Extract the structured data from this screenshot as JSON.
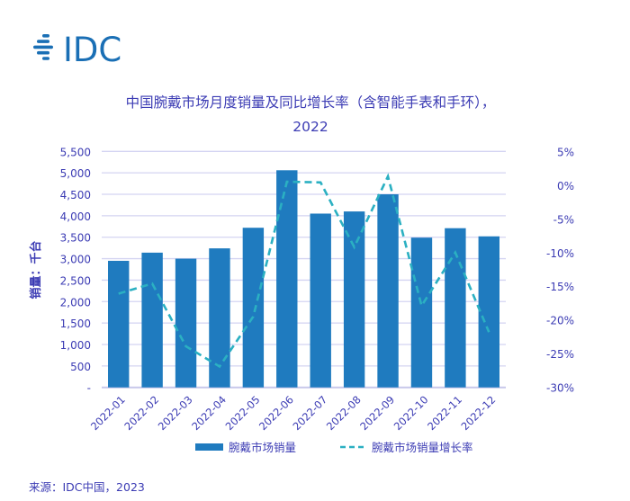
{
  "logo": {
    "text": "IDC",
    "color": "#1a6fb5"
  },
  "source": "来源：IDC中国，2023",
  "colors": {
    "text": "#3c3cb4",
    "bar": "#1f7bbf",
    "line": "#2bb0c2",
    "grid": "#d4d4f2"
  },
  "chart_data": {
    "type": "bar+line",
    "title_line1": "中国腕戴市场月度销量及同比增长率（含智能手表和手环），",
    "title_line2": "2022",
    "ylabel": "销量：千台",
    "categories": [
      "2022-01",
      "2022-02",
      "2022-03",
      "2022-04",
      "2022-05",
      "2022-06",
      "2022-07",
      "2022-08",
      "2022-09",
      "2022-10",
      "2022-11",
      "2022-12"
    ],
    "series": [
      {
        "name": "腕戴市场销量",
        "type": "bar",
        "axis": "left",
        "values": [
          2950,
          3140,
          3000,
          3240,
          3720,
          5060,
          4050,
          4100,
          4500,
          3490,
          3710,
          3520
        ]
      },
      {
        "name": "腕戴市场销量增长率",
        "type": "line",
        "style": "dashed",
        "axis": "right",
        "values": [
          -16.1,
          -14.6,
          -23.9,
          -26.9,
          -19.5,
          0.5,
          0.4,
          -9.2,
          1.3,
          -17.9,
          -10.0,
          -21.8
        ]
      }
    ],
    "left_axis": {
      "range": [
        0,
        5500
      ],
      "ticks": [
        "-",
        "500",
        "1,000",
        "1,500",
        "2,000",
        "2,500",
        "3,000",
        "3,500",
        "4,000",
        "4,500",
        "5,000",
        "5,500"
      ]
    },
    "right_axis": {
      "range": [
        -30,
        5
      ],
      "unit": "%",
      "ticks": [
        "-30%",
        "-25%",
        "-20%",
        "-15%",
        "-10%",
        "-5%",
        "0%",
        "5%"
      ]
    },
    "grid": true,
    "legend_position": "bottom"
  }
}
